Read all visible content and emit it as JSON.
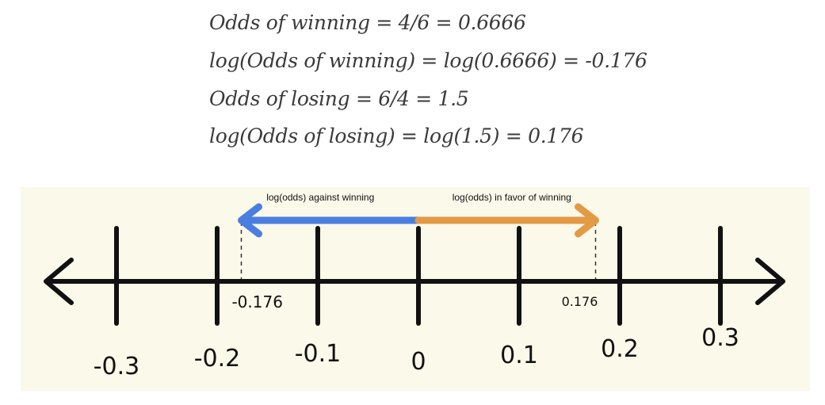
{
  "equations": [
    "Odds of winning = 4/6 = 0.6666",
    "log(Odds of winning) = log(0.6666) = -0.176",
    "Odds of losing = 6/4 = 1.5",
    "log(Odds of losing) = log(1.5) = 0.176"
  ],
  "number_line": {
    "ticks": [
      {
        "value": -0.3,
        "label": "-0.3"
      },
      {
        "value": -0.2,
        "label": "-0.2"
      },
      {
        "value": -0.1,
        "label": "-0.1"
      },
      {
        "value": 0,
        "label": "0"
      },
      {
        "value": 0.1,
        "label": "0.1"
      },
      {
        "value": 0.2,
        "label": "0.2"
      },
      {
        "value": 0.3,
        "label": "0.3"
      }
    ],
    "markers": [
      {
        "value": -0.176,
        "label": "-0.176"
      },
      {
        "value": 0.176,
        "label": "0.176"
      }
    ],
    "arrows": [
      {
        "from": 0,
        "to": -0.176,
        "label": "log(odds) against winning",
        "color": "#4a7fe0"
      },
      {
        "from": 0,
        "to": 0.176,
        "label": "log(odds) in favor of winning",
        "color": "#e39a45"
      }
    ],
    "axis_color": "#111111",
    "background": "#fbf9ea"
  }
}
